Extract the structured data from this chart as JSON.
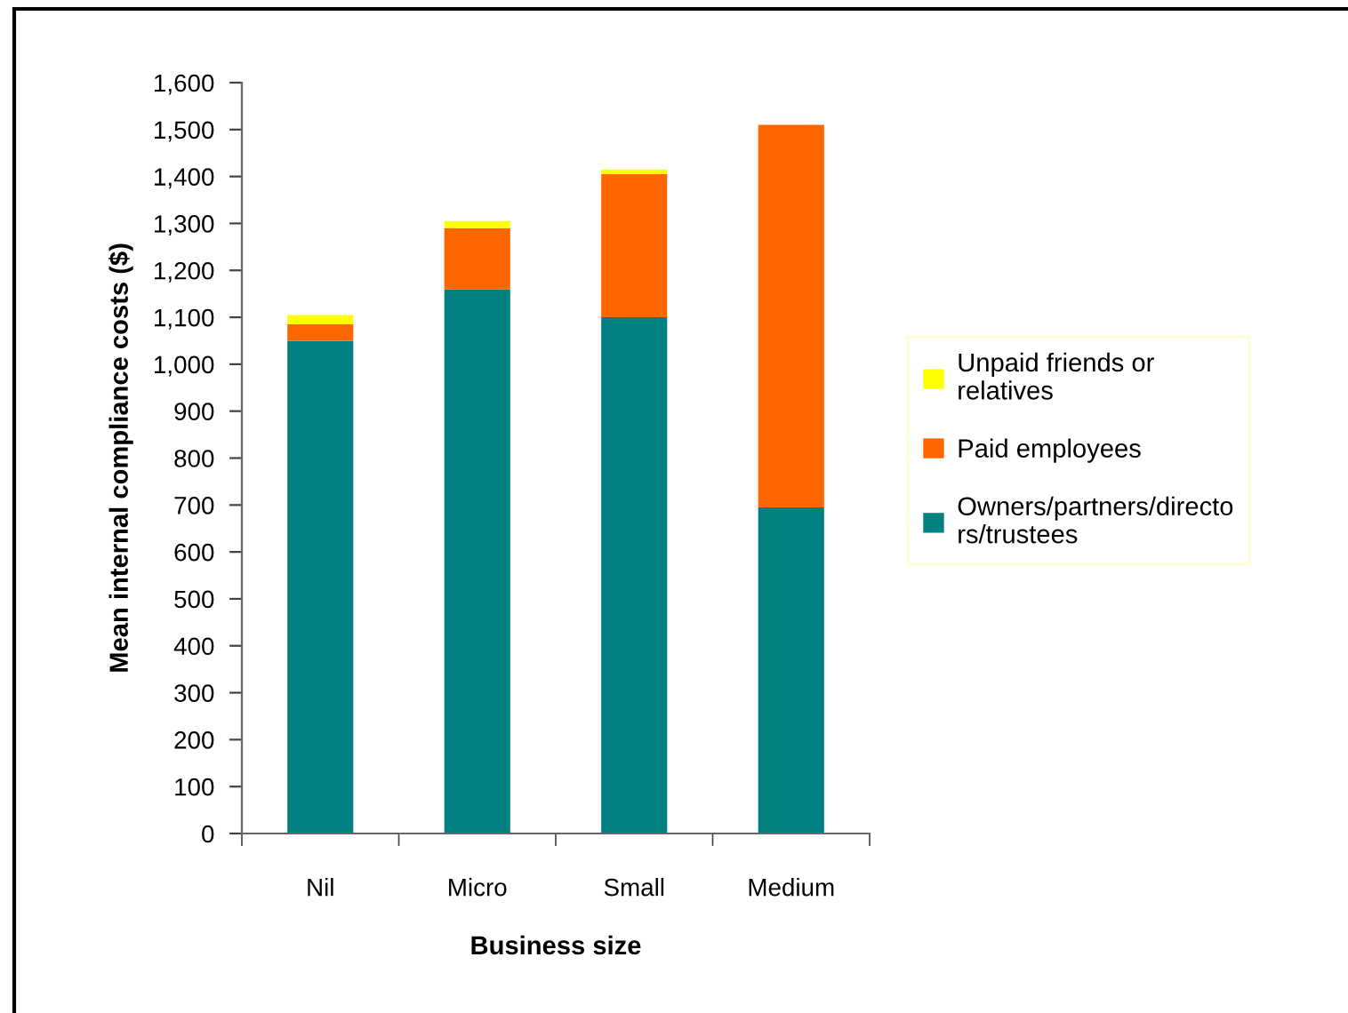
{
  "chart_data": {
    "type": "bar",
    "stacked": true,
    "xlabel": "Business size",
    "ylabel": "Mean internal compliance costs ($)",
    "categories": [
      "Nil",
      "Micro",
      "Small",
      "Medium"
    ],
    "series": [
      {
        "name": "Owners/partners/directors/trustees",
        "color": "#008080",
        "values": [
          1050,
          1160,
          1100,
          695
        ]
      },
      {
        "name": "Paid employees",
        "color": "#ff6600",
        "values": [
          35,
          130,
          305,
          815
        ]
      },
      {
        "name": "Unpaid friends or relatives",
        "color": "#ffff00",
        "values": [
          20,
          15,
          10,
          null
        ]
      }
    ],
    "ylim": [
      0,
      1600
    ],
    "yticks": [
      0,
      100,
      200,
      300,
      400,
      500,
      600,
      700,
      800,
      900,
      {
        "value": 1000,
        "label": "1,000"
      },
      {
        "value": 1100,
        "label": "1,100"
      },
      {
        "value": 1200,
        "label": "1,200"
      },
      {
        "value": 1300,
        "label": "1,300"
      },
      {
        "value": 1400,
        "label": "1,400"
      },
      {
        "value": 1500,
        "label": "1,500"
      },
      {
        "value": 1600,
        "label": "1,600"
      }
    ],
    "grid": false,
    "legend": "right"
  }
}
